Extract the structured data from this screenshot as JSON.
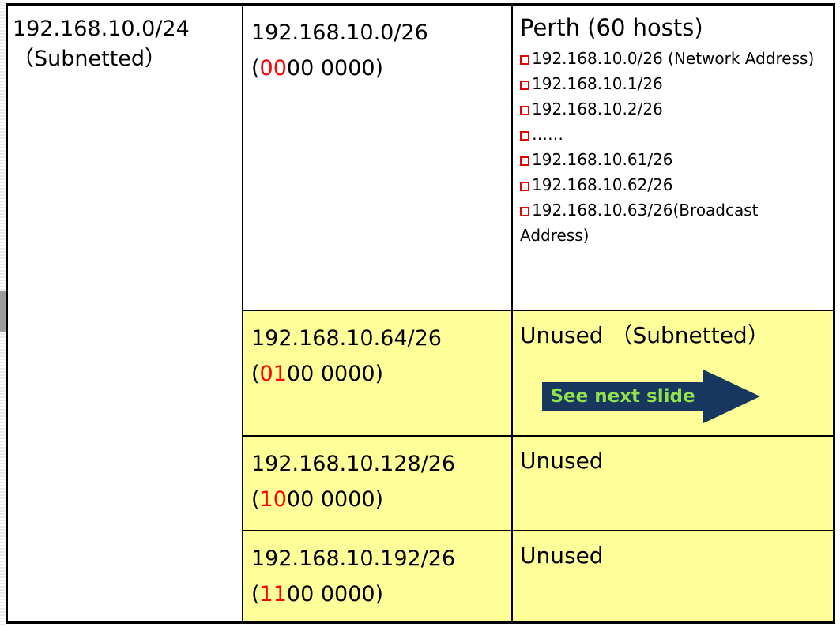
{
  "slide": {
    "parent": {
      "line1": "192.168.10.0/24",
      "line2": "（Subnetted）"
    },
    "rows": [
      {
        "subnet": "192.168.10.0/26",
        "binary": {
          "pre": "(",
          "red": "00",
          "post": "00 0000)"
        },
        "detail": {
          "title": "Perth (60 hosts)",
          "items": [
            "192.168.10.0/26 (Network Address)",
            "192.168.10.1/26",
            "192.168.10.2/26",
            "……",
            "192.168.10.61/26",
            "192.168.10.62/26",
            "192.168.10.63/26(Broadcast Address)"
          ]
        }
      },
      {
        "subnet": "192.168.10.64/26",
        "binary": {
          "pre": "(",
          "red": "01",
          "post": "00 0000)"
        },
        "detail": {
          "title": "Unused （Subnetted）",
          "arrow_label": "See next slide"
        }
      },
      {
        "subnet": "192.168.10.128/26",
        "binary": {
          "pre": "(",
          "red": "10",
          "post": "00 0000)"
        },
        "detail": {
          "title": "Unused"
        }
      },
      {
        "subnet": "192.168.10.192/26",
        "binary": {
          "pre": "(",
          "red": "11",
          "post": "00 0000)"
        },
        "detail": {
          "title": "Unused"
        }
      }
    ],
    "colors": {
      "highlight_red": "#ff0000",
      "bullet_red": "#e60000",
      "row_yellow": "#ffff99",
      "arrow_navy": "#17375e",
      "arrow_green": "#92e04e"
    }
  }
}
